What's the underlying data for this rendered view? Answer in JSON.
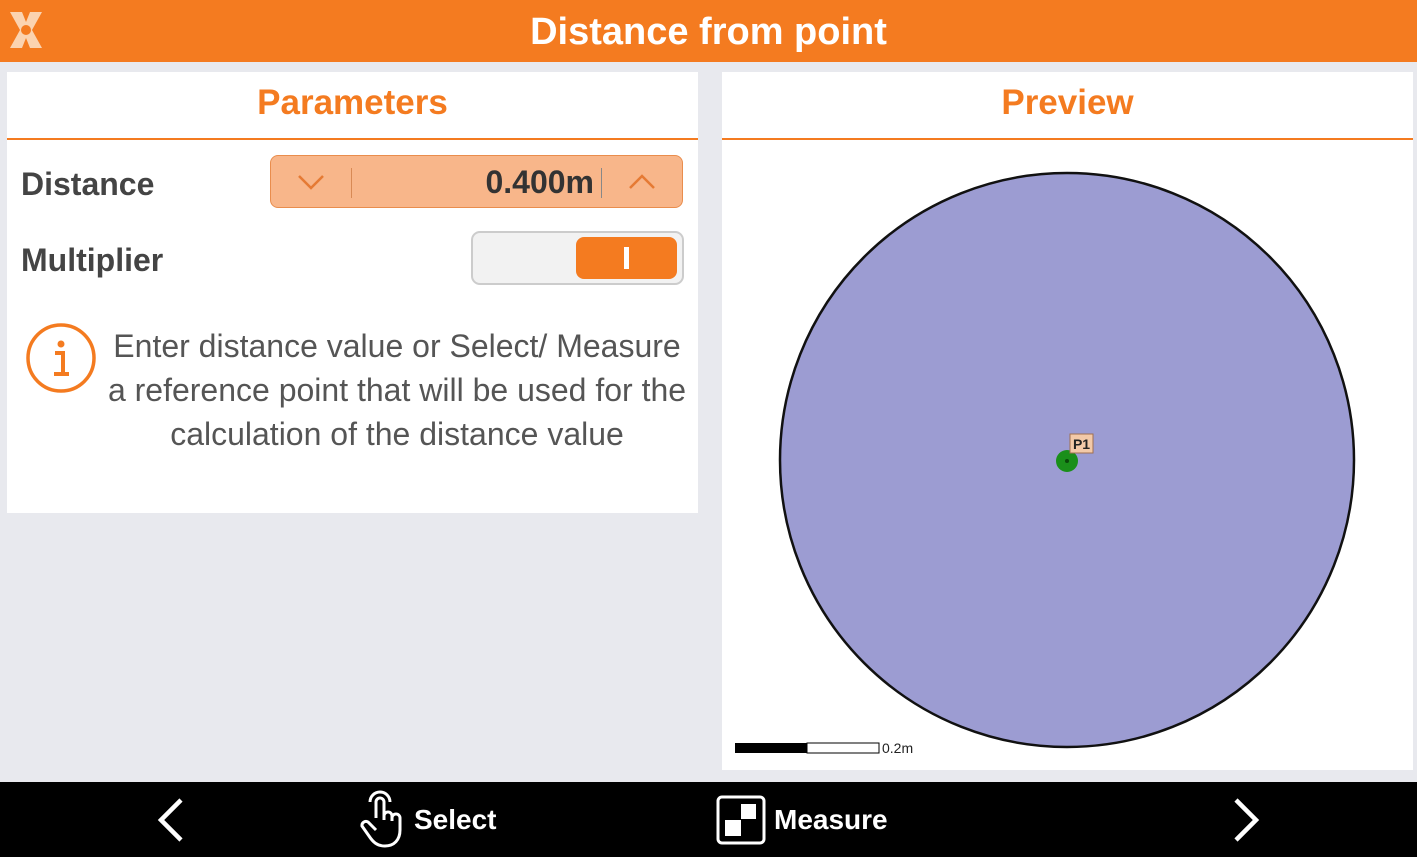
{
  "header": {
    "title": "Distance from point",
    "logo_icon": "x-logo"
  },
  "parameters": {
    "title": "Parameters",
    "distance": {
      "label": "Distance",
      "value": "0.400m",
      "decrement_icon": "chevron-down-icon",
      "increment_icon": "chevron-up-icon"
    },
    "multiplier": {
      "label": "Multiplier",
      "on": true
    },
    "info": {
      "icon": "info-icon",
      "text": "Enter distance value or Select/ Measure a reference point that will be used for the calculation of the distance value"
    }
  },
  "preview": {
    "title": "Preview",
    "point_label": "P1",
    "scale_label": "0.2m",
    "circle_fill": "#9c9cd2",
    "point_color": "#1a8f1a"
  },
  "bottom_bar": {
    "back_icon": "chevron-left-icon",
    "select_label": "Select",
    "select_icon": "hand-pointer-icon",
    "measure_label": "Measure",
    "measure_icon": "measure-icon",
    "next_icon": "chevron-right-icon"
  },
  "colors": {
    "accent": "#f47b20",
    "background": "#e8e9ee"
  }
}
